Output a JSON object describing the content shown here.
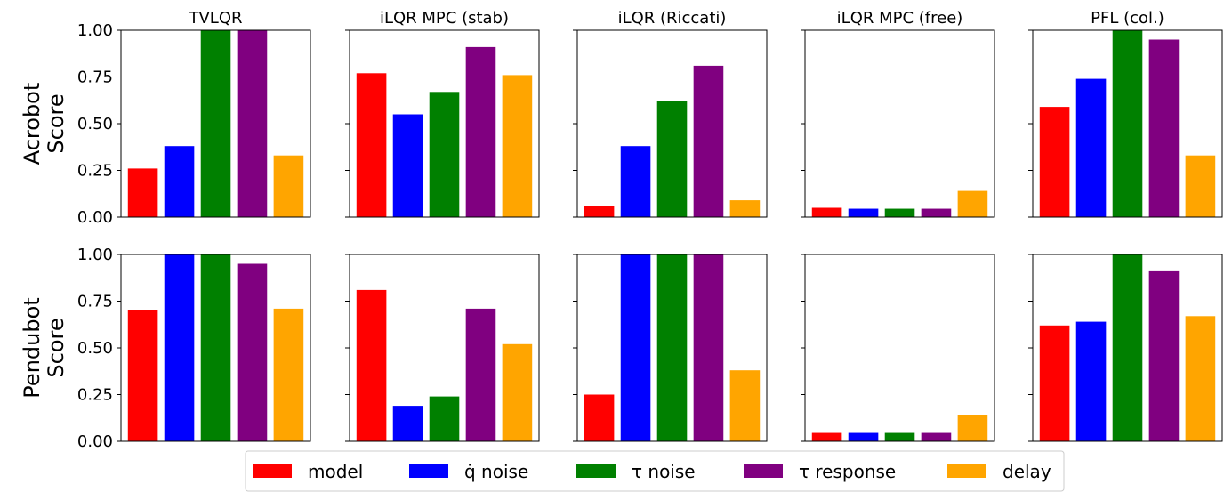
{
  "chart_data": {
    "type": "bar",
    "legend": {
      "placement": "bottom-center",
      "entries": [
        {
          "key": "model",
          "label": "model",
          "color": "#ff0000"
        },
        {
          "key": "qdot",
          "label": "q̇ noise",
          "color": "#0000ff"
        },
        {
          "key": "tau_noise",
          "label": "τ noise",
          "color": "#008000"
        },
        {
          "key": "tau_resp",
          "label": "τ response",
          "color": "#800080"
        },
        {
          "key": "delay",
          "label": "delay",
          "color": "#ffa500"
        }
      ]
    },
    "ylim": [
      0,
      1
    ],
    "yticks": [
      "0.00",
      "0.25",
      "0.50",
      "0.75",
      "1.00"
    ],
    "columns": [
      "TVLQR",
      "iLQR MPC (stab)",
      "iLQR (Riccati)",
      "iLQR MPC (free)",
      "PFL (col.)"
    ],
    "rows": [
      {
        "label_line1": "Acrobot",
        "label_line2": "Score",
        "values": [
          [
            0.26,
            0.38,
            1.0,
            1.0,
            0.33
          ],
          [
            0.77,
            0.55,
            0.67,
            0.91,
            0.76
          ],
          [
            0.06,
            0.38,
            0.62,
            0.81,
            0.09
          ],
          [
            0.05,
            0.045,
            0.045,
            0.045,
            0.14
          ],
          [
            0.59,
            0.74,
            1.0,
            0.95,
            0.33
          ]
        ]
      },
      {
        "label_line1": "Pendubot",
        "label_line2": "Score",
        "values": [
          [
            0.7,
            1.0,
            1.0,
            0.95,
            0.71
          ],
          [
            0.81,
            0.19,
            0.24,
            0.71,
            0.52
          ],
          [
            0.25,
            1.0,
            1.0,
            1.0,
            0.38
          ],
          [
            0.045,
            0.045,
            0.045,
            0.045,
            0.14
          ],
          [
            0.62,
            0.64,
            1.0,
            0.91,
            0.67
          ]
        ]
      }
    ]
  }
}
